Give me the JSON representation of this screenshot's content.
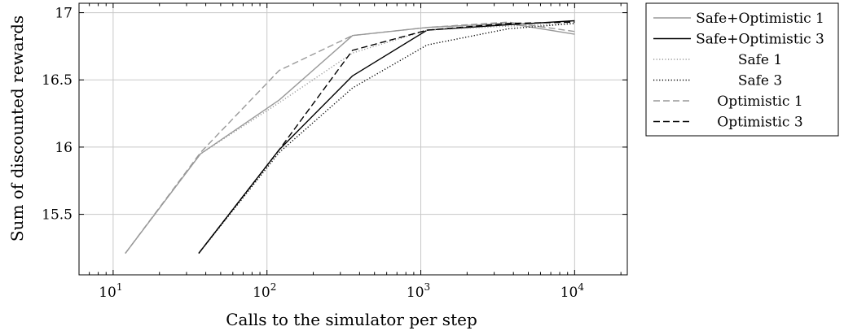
{
  "chart_data": {
    "type": "line",
    "xlabel": "Calls to the simulator per step",
    "ylabel": "Sum of discounted rewards",
    "x_scale": "log",
    "xlim": [
      6,
      22000
    ],
    "ylim": [
      15.05,
      17.07
    ],
    "grid": true,
    "legend_position": "outside-right",
    "x_ticks": [
      {
        "value": 10,
        "base": "10",
        "exp": "1"
      },
      {
        "value": 100,
        "base": "10",
        "exp": "2"
      },
      {
        "value": 1000,
        "base": "10",
        "exp": "3"
      },
      {
        "value": 10000,
        "base": "10",
        "exp": "4"
      }
    ],
    "y_ticks": [
      {
        "value": 15.5,
        "label": "15.5"
      },
      {
        "value": 16,
        "label": "16"
      },
      {
        "value": 16.5,
        "label": "16.5"
      },
      {
        "value": 17,
        "label": "17"
      }
    ],
    "series": [
      {
        "name": "Safe+Optimistic 1",
        "color": "#999999",
        "dash": "",
        "width": 1.4,
        "x": [
          12,
          37,
          120,
          360,
          1100,
          3700,
          10000
        ],
        "y": [
          15.21,
          15.95,
          16.35,
          16.83,
          16.89,
          16.92,
          16.84
        ]
      },
      {
        "name": "Safe+Optimistic 3",
        "color": "#000000",
        "dash": "",
        "width": 1.4,
        "x": [
          36,
          120,
          360,
          1100,
          3700,
          10000
        ],
        "y": [
          15.21,
          15.98,
          16.53,
          16.87,
          16.91,
          16.94
        ]
      },
      {
        "name": "Safe 1",
        "color": "#999999",
        "dash": "1.2,2.4",
        "width": 1.4,
        "x": [
          12,
          37,
          120,
          360,
          1100,
          3700,
          10000
        ],
        "y": [
          15.21,
          15.95,
          16.33,
          16.7,
          16.87,
          16.9,
          16.92
        ]
      },
      {
        "name": "Safe 3",
        "color": "#000000",
        "dash": "1.2,2.4",
        "width": 1.4,
        "x": [
          36,
          120,
          360,
          1100,
          3700,
          10000
        ],
        "y": [
          15.21,
          15.96,
          16.44,
          16.76,
          16.88,
          16.92
        ]
      },
      {
        "name": "Optimistic 1",
        "color": "#999999",
        "dash": "8,4",
        "width": 1.4,
        "x": [
          12,
          37,
          120,
          360,
          1100,
          3700,
          10000
        ],
        "y": [
          15.21,
          15.96,
          16.57,
          16.83,
          16.89,
          16.93,
          16.86
        ]
      },
      {
        "name": "Optimistic 3",
        "color": "#000000",
        "dash": "8,4",
        "width": 1.4,
        "x": [
          36,
          120,
          360,
          1100,
          3700,
          10000
        ],
        "y": [
          15.21,
          15.98,
          16.72,
          16.87,
          16.92,
          16.93
        ]
      }
    ]
  }
}
